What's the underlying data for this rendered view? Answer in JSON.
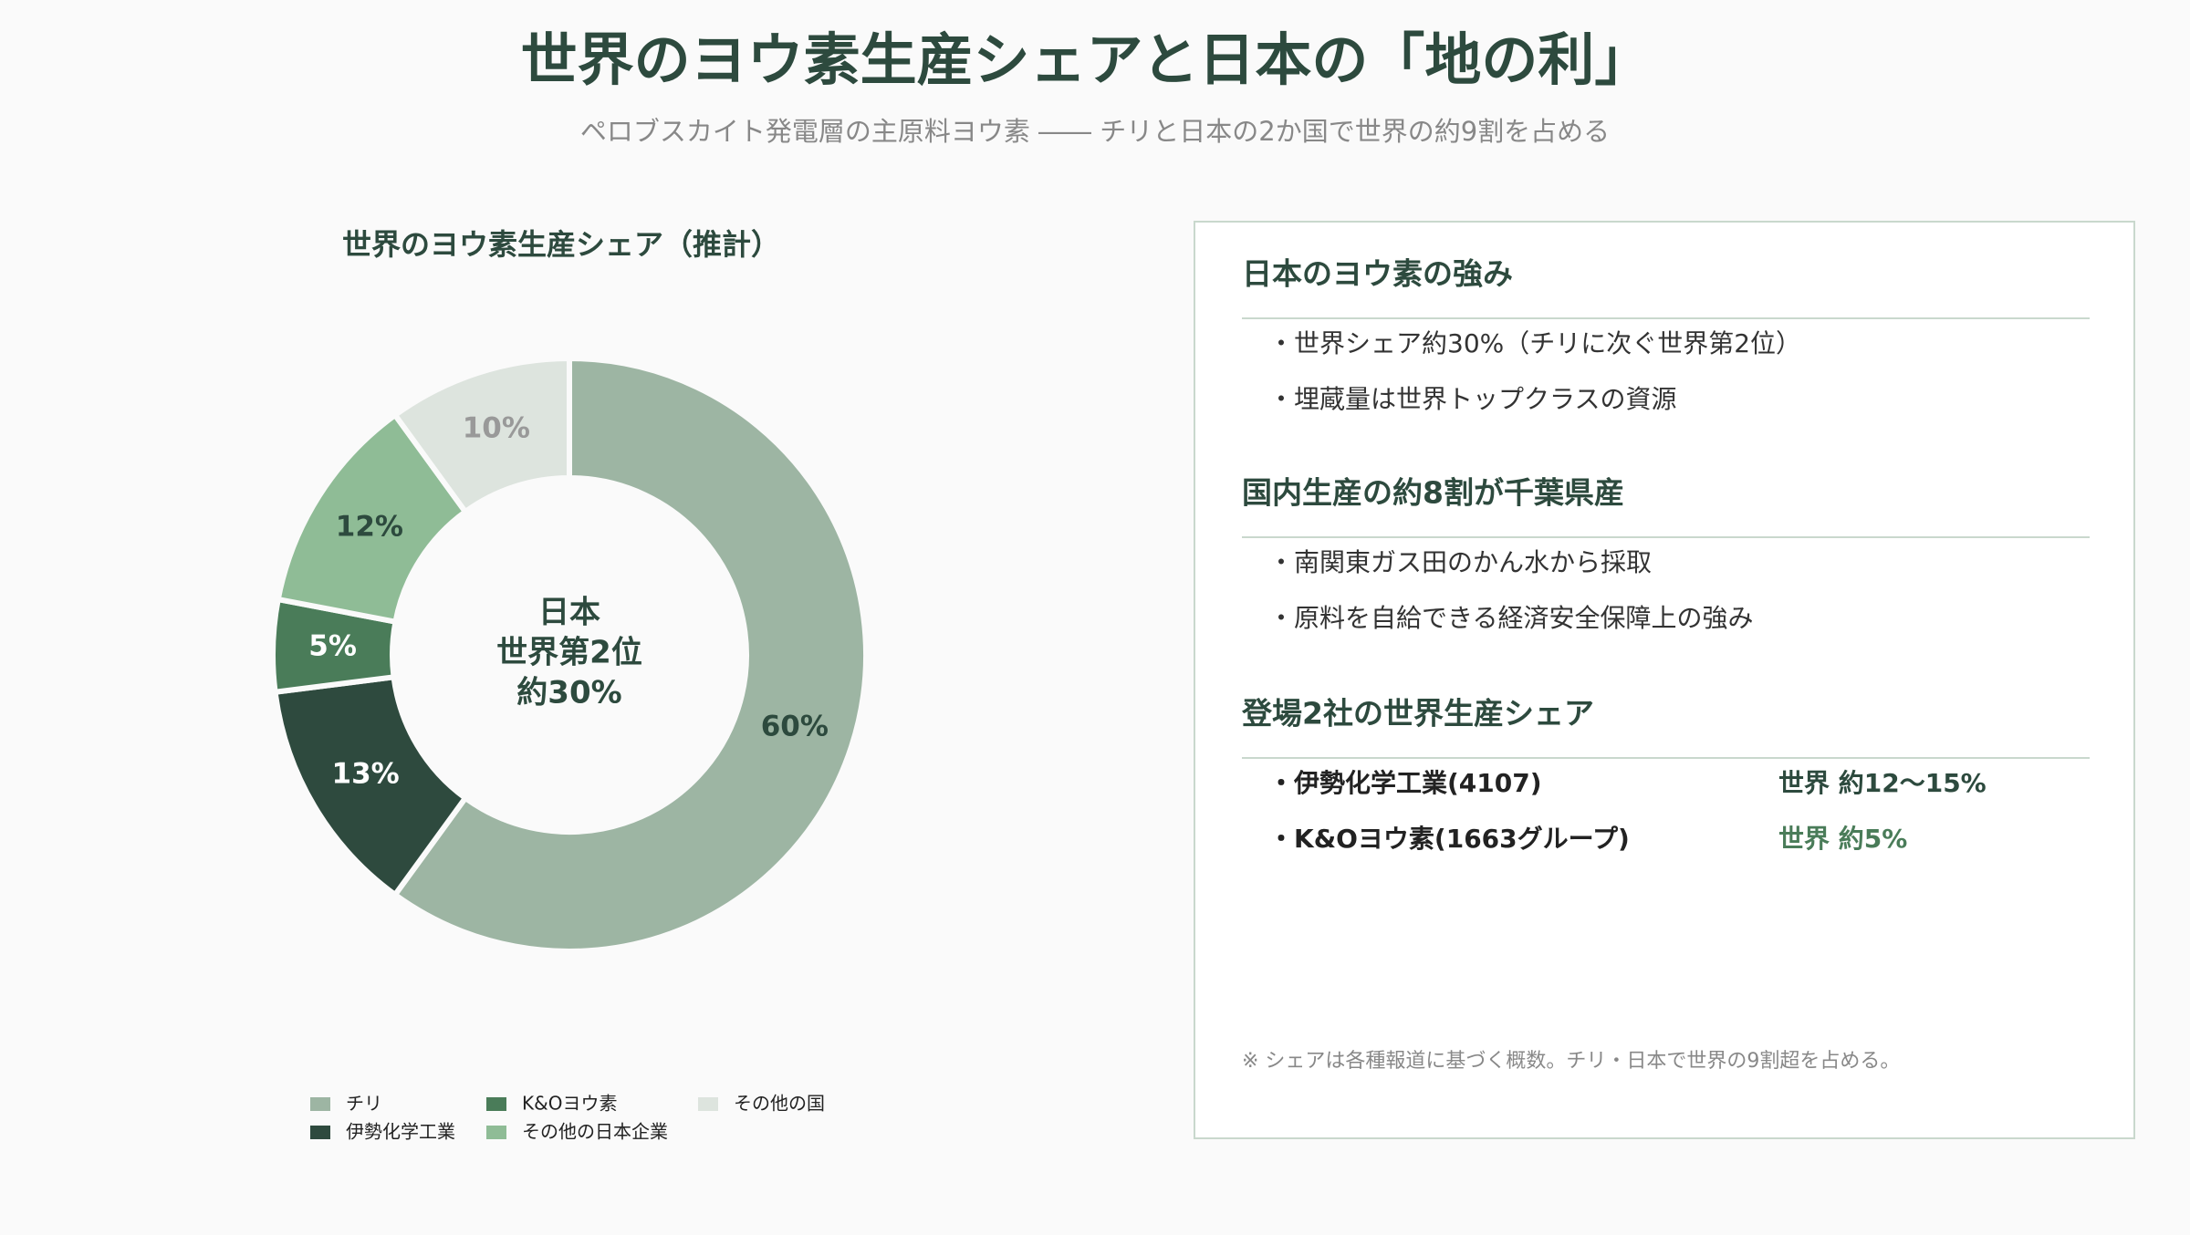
{
  "header": {
    "title": "世界のヨウ素生産シェアと日本の「地の利」",
    "subtitle": "ペロブスカイト発電層の主原料ヨウ素 ―― チリと日本の2か国で世界の約9割を占める"
  },
  "chart_data": {
    "type": "donut",
    "title": "世界のヨウ素生産シェア（推計）",
    "series": [
      {
        "name": "チリ",
        "color": "#9db5a3",
        "values": [
          60
        ],
        "value_labels": [
          "60%"
        ]
      },
      {
        "name": "伊勢化学工業",
        "color": "#2e4a3e",
        "values": [
          13
        ],
        "value_labels": [
          "13%"
        ]
      },
      {
        "name": "K&Oヨウ素",
        "color": "#4a7c59",
        "values": [
          5
        ],
        "value_labels": [
          "5%"
        ]
      },
      {
        "name": "その他の日本企業",
        "color": "#8fbc96",
        "values": [
          12
        ],
        "value_labels": [
          "12%"
        ]
      },
      {
        "name": "その他の国",
        "color": "#dde4de",
        "values": [
          10
        ],
        "value_labels": [
          "10%"
        ]
      }
    ],
    "annotation": [
      "日本",
      "世界第2位",
      "約30%"
    ]
  },
  "panel": {
    "sections": [
      {
        "heading": "日本のヨウ素の強み",
        "items": [
          "・世界シェア約30%（チリに次ぐ世界第2位）",
          "・埋蔵量は世界トップクラスの資源"
        ]
      },
      {
        "heading": "国内生産の約8割が千葉県産",
        "items": [
          "・南関東ガス田のかん水から採取",
          "・原料を自給できる経済安全保障上の強み"
        ]
      },
      {
        "heading": "登場2社の世界生産シェア",
        "rows": [
          {
            "name": "・伊勢化学工業(4107)",
            "share": "世界 約12〜15%"
          },
          {
            "name": "・K&Oヨウ素(1663グループ)",
            "share": "世界 約5%"
          }
        ]
      }
    ],
    "note": "※ シェアは各種報道に基づく概数。チリ・日本で世界の9割超を占める。"
  }
}
